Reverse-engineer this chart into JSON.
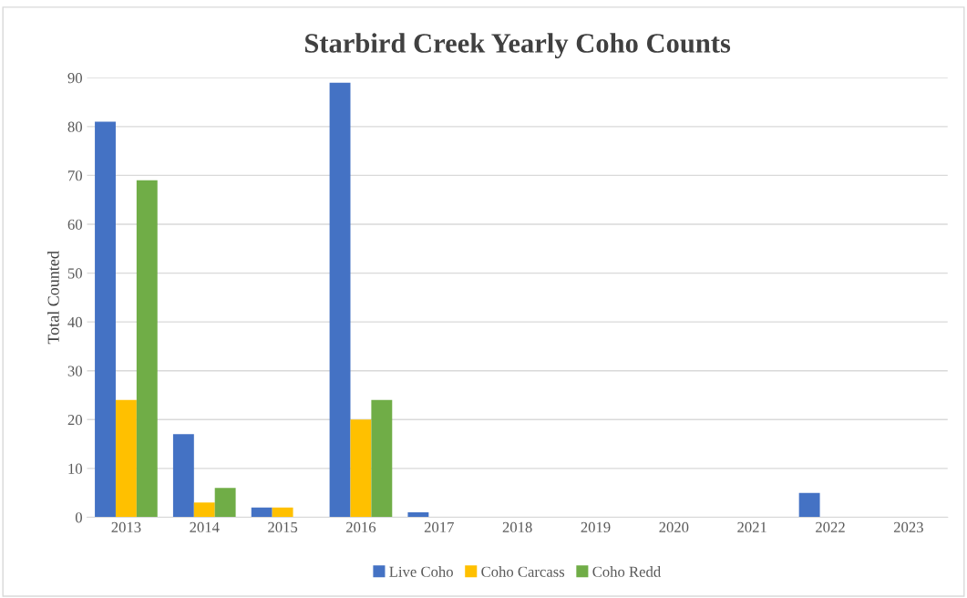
{
  "chart_data": {
    "type": "bar",
    "title": "Starbird Creek Yearly Coho Counts",
    "ylabel": "Total Counted",
    "categories": [
      "2013",
      "2014",
      "2015",
      "2016",
      "2017",
      "2018",
      "2019",
      "2020",
      "2021",
      "2022",
      "2023"
    ],
    "series": [
      {
        "name": "Live Coho",
        "color": "#4472c4",
        "values": [
          81,
          17,
          2,
          89,
          1,
          0,
          0,
          0,
          0,
          5,
          0
        ]
      },
      {
        "name": "Coho Carcass",
        "color": "#ffc000",
        "values": [
          24,
          3,
          2,
          20,
          0,
          0,
          0,
          0,
          0,
          0,
          0
        ]
      },
      {
        "name": "Coho Redd",
        "color": "#70ad47",
        "values": [
          69,
          6,
          0,
          24,
          0,
          0,
          0,
          0,
          0,
          0,
          0
        ]
      }
    ],
    "ylim": [
      0,
      90
    ],
    "yticks": [
      0,
      10,
      20,
      30,
      40,
      50,
      60,
      70,
      80,
      90
    ],
    "grid": "y",
    "legend": "bottom"
  }
}
